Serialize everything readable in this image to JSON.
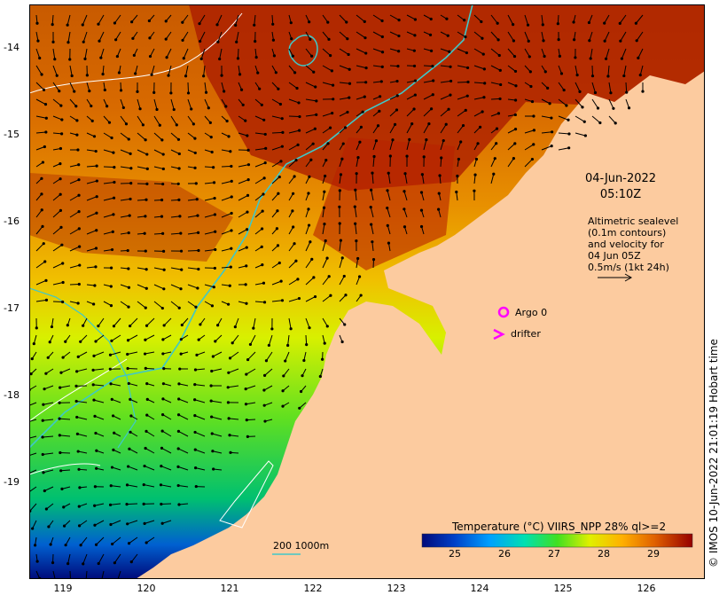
{
  "map": {
    "y_ticks": [
      "-14",
      "-15",
      "-16",
      "-17",
      "-18",
      "-19"
    ],
    "x_ticks": [
      "119",
      "120",
      "121",
      "122",
      "123",
      "124",
      "125",
      "126"
    ],
    "timestamp_date": "04-Jun-2022",
    "timestamp_time": "05:10Z",
    "altimetry_note": "Altimetric sealevel\n(0.1m contours)\nand velocity for\n04 Jun 05Z\n0.5m/s (1kt 24h)",
    "argo_label": "Argo 0",
    "drifter_label": "drifter",
    "scale_label": "200  1000m",
    "colorbar_title": "Temperature (°C) VIIRS_NPP 28% ql>=2",
    "colorbar_ticks": [
      "25",
      "26",
      "27",
      "28",
      "29"
    ],
    "credit": "© IMOS 10-Jun-2022 21:01:19 Hobart time",
    "colors": {
      "land": "#fccb9f",
      "isobath": "#3fc8c8",
      "argo": "#ff00ff",
      "sst_scale": [
        "#000a7a",
        "#0050d0",
        "#00b4ff",
        "#00e0a0",
        "#40e020",
        "#e6f000",
        "#ffc000",
        "#f07800",
        "#c83000",
        "#960000"
      ]
    }
  }
}
